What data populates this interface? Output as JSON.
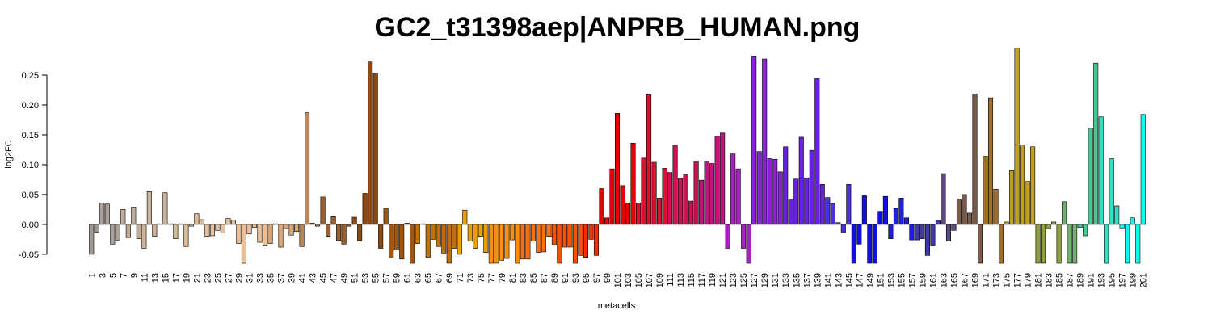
{
  "chart_data": {
    "type": "bar",
    "title": "GC2_t31398aep|ANPRB_HUMAN.png",
    "x_label": "metacells",
    "y_label": "log2FC",
    "categories": [
      1,
      null,
      3,
      null,
      5,
      null,
      7,
      null,
      9,
      null,
      11,
      null,
      13,
      null,
      15,
      null,
      17,
      null,
      19,
      null,
      21,
      null,
      23,
      null,
      25,
      null,
      27,
      null,
      29,
      null,
      31,
      null,
      33,
      null,
      35,
      null,
      37,
      null,
      39,
      null,
      41,
      null,
      43,
      null,
      45,
      null,
      47,
      null,
      49,
      null,
      51,
      null,
      53,
      null,
      55,
      null,
      57,
      null,
      59,
      null,
      61,
      null,
      63,
      null,
      65,
      null,
      67,
      null,
      69,
      null,
      71,
      null,
      73,
      null,
      75,
      null,
      77,
      null,
      79,
      null,
      81,
      null,
      83,
      null,
      85,
      null,
      87,
      null,
      89,
      null,
      91,
      null,
      93,
      null,
      95,
      null,
      97,
      null,
      99,
      null,
      101,
      null,
      103,
      null,
      105,
      null,
      107,
      null,
      109,
      null,
      111,
      null,
      113,
      null,
      115,
      null,
      117,
      null,
      119,
      null,
      121,
      null,
      123,
      null,
      125,
      null,
      127,
      null,
      129,
      null,
      131,
      null,
      133,
      null,
      135,
      null,
      137,
      null,
      139,
      null,
      141,
      null,
      143,
      null,
      145,
      null,
      147,
      null,
      149,
      null,
      151,
      null,
      153,
      null,
      155,
      null,
      157,
      null,
      159,
      null,
      161,
      null,
      163,
      null,
      165,
      null,
      167,
      null,
      169,
      null,
      171,
      null,
      173,
      null,
      175,
      null,
      177,
      null,
      179,
      null,
      181,
      null,
      183,
      null,
      185,
      null,
      187,
      null,
      189,
      null,
      191,
      null,
      193,
      null,
      195,
      null,
      197,
      null,
      199,
      null,
      201
    ],
    "values": [
      -0.05,
      -0.013,
      0.036,
      0.034,
      -0.033,
      -0.027,
      0.025,
      -0.022,
      0.029,
      -0.024,
      -0.04,
      0.055,
      -0.02,
      0.001,
      0.053,
      0.001,
      -0.024,
      0.001,
      -0.037,
      -0.003,
      0.018,
      0.008,
      -0.02,
      -0.019,
      -0.01,
      -0.014,
      0.01,
      0.007,
      -0.032,
      -0.065,
      -0.016,
      -0.005,
      -0.03,
      -0.036,
      -0.032,
      0.001,
      -0.038,
      -0.007,
      -0.018,
      -0.012,
      -0.037,
      0.187,
      0.002,
      -0.003,
      0.046,
      -0.02,
      0.013,
      -0.027,
      -0.033,
      -0.003,
      0.012,
      -0.027,
      0.052,
      0.272,
      0.253,
      -0.04,
      0.027,
      -0.056,
      -0.043,
      -0.058,
      0.002,
      -0.065,
      -0.032,
      0.001,
      -0.055,
      -0.025,
      -0.037,
      -0.048,
      -0.065,
      -0.04,
      -0.05,
      0.024,
      -0.028,
      -0.04,
      -0.02,
      -0.047,
      -0.065,
      -0.065,
      -0.06,
      -0.057,
      -0.026,
      -0.065,
      -0.058,
      -0.058,
      -0.028,
      -0.047,
      -0.046,
      -0.02,
      -0.034,
      -0.065,
      -0.038,
      -0.038,
      -0.065,
      -0.052,
      -0.055,
      -0.025,
      -0.052,
      0.06,
      0.011,
      0.093,
      0.186,
      0.065,
      0.036,
      0.136,
      0.036,
      0.111,
      0.217,
      0.104,
      0.044,
      0.094,
      0.087,
      0.133,
      0.077,
      0.083,
      0.039,
      0.106,
      0.074,
      0.106,
      0.102,
      0.148,
      0.153,
      -0.04,
      0.118,
      0.093,
      -0.04,
      -0.065,
      0.282,
      0.122,
      0.277,
      0.11,
      0.109,
      0.088,
      0.13,
      0.041,
      0.076,
      0.146,
      0.078,
      0.124,
      0.244,
      0.067,
      0.045,
      0.035,
      0.003,
      -0.013,
      0.067,
      -0.065,
      -0.033,
      0.048,
      -0.065,
      -0.065,
      0.022,
      0.047,
      -0.024,
      0.027,
      0.044,
      0.011,
      -0.026,
      -0.026,
      -0.024,
      -0.052,
      -0.036,
      0.007,
      0.085,
      -0.028,
      -0.01,
      0.041,
      0.05,
      0.019,
      0.218,
      -0.065,
      0.114,
      0.212,
      0.059,
      -0.065,
      0.004,
      0.09,
      0.295,
      0.133,
      0.072,
      0.13,
      -0.065,
      -0.065,
      -0.007,
      0.004,
      -0.065,
      0.038,
      -0.065,
      -0.065,
      -0.005,
      -0.019,
      0.161,
      0.27,
      0.18,
      -0.065,
      0.11,
      0.031,
      -0.006,
      -0.065,
      0.011,
      -0.065,
      0.184
    ],
    "colors": [
      "#a09a94",
      "#a09a94",
      "#aaa29a",
      "#aaa29a",
      "#aaa29a",
      "#aaa29a",
      "#c0ad98",
      "#c0ad98",
      "#c0ad98",
      "#c0ad98",
      "#cbb49a",
      "#cbb49a",
      "#cbb49a",
      "#cbb49a",
      "#cbb49a",
      "#cbb49a",
      "#d8bc98",
      "#d8bc98",
      "#d8bc98",
      "#d8bc98",
      "#d8bc98",
      "#d8bc98",
      "#e2c29e",
      "#e2c29e",
      "#e2c29e",
      "#e2c29e",
      "#e2c29e",
      "#e2c29e",
      "#ecc096",
      "#ecc096",
      "#ecc096",
      "#ecc096",
      "#ecc096",
      "#ecc096",
      "#d8a878",
      "#d8a878",
      "#d8a878",
      "#d8a878",
      "#d8a878",
      "#d8a878",
      "#b8875a",
      "#b8875a",
      "#b8875a",
      "#b8875a",
      "#9a6030",
      "#9a6030",
      "#9a6030",
      "#9a6030",
      "#9a6030",
      "#9a6030",
      "#8b4a14",
      "#8b4a14",
      "#8b4a14",
      "#8b4a14",
      "#8b4a14",
      "#8b4a14",
      "#a2560e",
      "#a2560e",
      "#a2560e",
      "#a2560e",
      "#a2560e",
      "#a2560e",
      "#c0700a",
      "#c0700a",
      "#c0700a",
      "#c0700a",
      "#c0700a",
      "#c0700a",
      "#c0700a",
      "#c0700a",
      "#eaa000",
      "#eaa000",
      "#eaa000",
      "#eaa000",
      "#eaa000",
      "#eaa000",
      "#fb9010",
      "#fb9010",
      "#fb9010",
      "#fb9010",
      "#fb9010",
      "#fb9010",
      "#fd7010",
      "#fd7010",
      "#fd7010",
      "#fd7010",
      "#fd7010",
      "#fd7010",
      "#fb5008",
      "#fb5008",
      "#fb5008",
      "#fb5008",
      "#fb5008",
      "#fb5008",
      "#f23005",
      "#f23005",
      "#f23005",
      "#e80000",
      "#e80000",
      "#e80000",
      "#e80000",
      "#e80000",
      "#e80000",
      "#e80000",
      "#dc1030",
      "#dc1030",
      "#dc1030",
      "#dc1030",
      "#dc1030",
      "#dc1030",
      "#d01050",
      "#d01050",
      "#d01050",
      "#d01050",
      "#d01050",
      "#d01050",
      "#c01480",
      "#c01480",
      "#c01480",
      "#c01480",
      "#c01480",
      "#a820c0",
      "#a820c0",
      "#a820c0",
      "#a820c0",
      "#a820c0",
      "#8a20dd",
      "#8a20dd",
      "#8a20dd",
      "#8a20dd",
      "#8a20dd",
      "#8a20dd",
      "#6a20e0",
      "#6a20e0",
      "#6a20e0",
      "#6a20e0",
      "#6a20e0",
      "#6a20e0",
      "#6a20e0",
      "#6a20e0",
      "#4a30d8",
      "#4a30d8",
      "#4a30d8",
      "#4a30d8",
      "#4a30d8",
      "#1010e0",
      "#1010e0",
      "#1010e0",
      "#1010e0",
      "#1010e0",
      "#1010e0",
      "#1010e0",
      "#2020d8",
      "#2020d8",
      "#2020d8",
      "#2020d8",
      "#2020d8",
      "#4038a8",
      "#4038a8",
      "#4038a8",
      "#4038a8",
      "#4038a8",
      "#5c4a80",
      "#5c4a80",
      "#5c4a80",
      "#7a5a48",
      "#7a5a48",
      "#7a5a48",
      "#7a5a48",
      "#7a5a48",
      "#a0702a",
      "#a0702a",
      "#a0702a",
      "#a0702a",
      "#c0a020",
      "#c0a020",
      "#c0a020",
      "#c0a020",
      "#c0a020",
      "#c0a020",
      "#90a040",
      "#90a040",
      "#90a040",
      "#90a040",
      "#90a040",
      "#70b070",
      "#70b070",
      "#70b070",
      "#48c890",
      "#48c890",
      "#48c890",
      "#48c890",
      "#30e0c0",
      "#30e0c0",
      "#30e0c0",
      "#30e0c0",
      "#10f8f0",
      "#10f8f0",
      "#10f8f0",
      "#10f8f0",
      "#10f8f0"
    ],
    "ylim": [
      -0.065,
      0.3
    ],
    "yticks": [
      {
        "value": -0.05,
        "label": "-0.05"
      },
      {
        "value": 0,
        "label": "0.00"
      },
      {
        "value": 0.05,
        "label": "0.05"
      },
      {
        "value": 0.1,
        "label": "0.10"
      },
      {
        "value": 0.15,
        "label": "0.15"
      },
      {
        "value": 0.2,
        "label": "0.20"
      },
      {
        "value": 0.25,
        "label": "0.25"
      }
    ],
    "grid": false
  }
}
